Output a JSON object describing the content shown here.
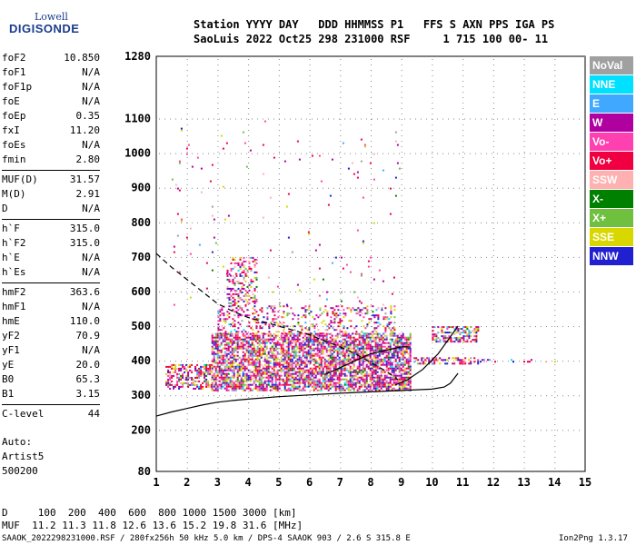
{
  "logo": {
    "line1": "Lowell",
    "line2": "DIGISONDE"
  },
  "header": {
    "line1": "Station YYYY DAY   DDD HHMMSS P1   FFS S AXN PPS IGA PS",
    "line2": "SaoLuis 2022 Oct25 298 231000 RSF     1 715 100 00- 11"
  },
  "params": [
    [
      {
        "k": "foF2",
        "v": "10.850"
      },
      {
        "k": "foF1",
        "v": "N/A"
      },
      {
        "k": "foF1p",
        "v": "N/A"
      },
      {
        "k": "foE",
        "v": "N/A"
      },
      {
        "k": "foEp",
        "v": "0.35"
      },
      {
        "k": "fxI",
        "v": "11.20"
      },
      {
        "k": "foEs",
        "v": "N/A"
      },
      {
        "k": "fmin",
        "v": "2.80"
      }
    ],
    [
      {
        "k": "MUF(D)",
        "v": "31.57"
      },
      {
        "k": "M(D)",
        "v": "2.91"
      },
      {
        "k": "D",
        "v": "N/A"
      }
    ],
    [
      {
        "k": "h`F",
        "v": "315.0"
      },
      {
        "k": "h`F2",
        "v": "315.0"
      },
      {
        "k": "h`E",
        "v": "N/A"
      },
      {
        "k": "h`Es",
        "v": "N/A"
      }
    ],
    [
      {
        "k": "hmF2",
        "v": "363.6"
      },
      {
        "k": "hmF1",
        "v": "N/A"
      },
      {
        "k": "hmE",
        "v": "110.0"
      },
      {
        "k": "yF2",
        "v": "70.9"
      },
      {
        "k": "yF1",
        "v": "N/A"
      },
      {
        "k": "yE",
        "v": "20.0"
      },
      {
        "k": "B0",
        "v": "65.3"
      },
      {
        "k": "B1",
        "v": "3.15"
      }
    ],
    [
      {
        "k": "C-level",
        "v": "44"
      }
    ]
  ],
  "auto": {
    "line1": "Auto:",
    "line2": "Artist5",
    "line3": "500200"
  },
  "bottom": {
    "d_line": "D     100  200  400  600  800 1000 1500 3000 [km]",
    "muf_line": "MUF  11.2 11.3 11.8 12.6 13.6 15.2 19.8 31.6 [MHz]",
    "footer_left": "SAAOK_2022298231000.RSF / 280fx256h 50 kHz 5.0 km / DPS-4 SAAOK 903 / 2.6 S 315.8 E",
    "footer_right": "Ion2Png 1.3.17"
  },
  "legend": [
    {
      "label": "NoVal",
      "color": "#a0a0a0"
    },
    {
      "label": "NNE",
      "color": "#00e0ff"
    },
    {
      "label": "E",
      "color": "#40a8ff"
    },
    {
      "label": "W",
      "color": "#b000a0"
    },
    {
      "label": "Vo-",
      "color": "#ff40b0"
    },
    {
      "label": "Vo+",
      "color": "#f00040"
    },
    {
      "label": "SSW",
      "color": "#ffb0b0"
    },
    {
      "label": "X-",
      "color": "#008000"
    },
    {
      "label": "X+",
      "color": "#70c040"
    },
    {
      "label": "SSE",
      "color": "#d8d800"
    },
    {
      "label": "NNW",
      "color": "#2020d0"
    }
  ],
  "chart_data": {
    "type": "scatter",
    "title": "",
    "xlabel": "",
    "ylabel": "",
    "xlim": [
      1,
      15
    ],
    "ylim": [
      80,
      1280
    ],
    "x_ticks": [
      1,
      2,
      3,
      4,
      5,
      6,
      7,
      8,
      9,
      10,
      11,
      12,
      13,
      14,
      15
    ],
    "y_ticks": [
      80,
      200,
      300,
      400,
      500,
      600,
      700,
      800,
      900,
      1000,
      1100,
      1280
    ],
    "grid": true,
    "legend_position": "right",
    "echo_clusters": [
      {
        "f_min": 1.3,
        "f_max": 2.8,
        "h_min": 320,
        "h_max": 390,
        "density": 0.55
      },
      {
        "f_min": 2.8,
        "f_max": 9.3,
        "h_min": 315,
        "h_max": 480,
        "density": 0.7
      },
      {
        "f_min": 3.0,
        "f_max": 8.8,
        "h_min": 480,
        "h_max": 560,
        "density": 0.25
      },
      {
        "f_min": 3.3,
        "f_max": 4.3,
        "h_min": 560,
        "h_max": 700,
        "density": 0.35
      },
      {
        "f_min": 9.4,
        "f_max": 11.5,
        "h_min": 390,
        "h_max": 410,
        "density": 0.5
      },
      {
        "f_min": 10.0,
        "f_max": 11.5,
        "h_min": 455,
        "h_max": 500,
        "density": 0.55
      },
      {
        "f_min": 11.5,
        "f_max": 14.0,
        "h_min": 395,
        "h_max": 405,
        "density": 0.2
      },
      {
        "f_min": 1.5,
        "f_max": 9.0,
        "h_min": 560,
        "h_max": 1100,
        "density": 0.01
      }
    ],
    "trace_true_height": [
      [
        1,
        240
      ],
      [
        1.5,
        252
      ],
      [
        2,
        262
      ],
      [
        2.5,
        272
      ],
      [
        3,
        280
      ],
      [
        3.5,
        285
      ],
      [
        4,
        289
      ],
      [
        5,
        296
      ],
      [
        6,
        301
      ],
      [
        7,
        306
      ],
      [
        8,
        310
      ],
      [
        9,
        314
      ],
      [
        10,
        318
      ],
      [
        10.4,
        324
      ],
      [
        10.6,
        335
      ],
      [
        10.85,
        363.6
      ]
    ],
    "trace_virtual_upper": [
      [
        8.8,
        330
      ],
      [
        9.2,
        345
      ],
      [
        9.7,
        375
      ],
      [
        10.2,
        420
      ],
      [
        10.85,
        500
      ]
    ],
    "trace_ordinary_dashed": [
      [
        1,
        710
      ],
      [
        1.5,
        670
      ],
      [
        2,
        635
      ],
      [
        2.5,
        600
      ],
      [
        3,
        565
      ],
      [
        3.5,
        543
      ],
      [
        4,
        525
      ],
      [
        5,
        500
      ],
      [
        6,
        475
      ],
      [
        7,
        440
      ],
      [
        7.5,
        420
      ],
      [
        8,
        395
      ],
      [
        8.5,
        370
      ],
      [
        8.9,
        345
      ]
    ],
    "trace_lower_branch": [
      [
        6.5,
        360
      ],
      [
        7,
        380
      ],
      [
        7.5,
        400
      ],
      [
        8,
        420
      ],
      [
        8.5,
        430
      ],
      [
        9,
        440
      ],
      [
        9.3,
        440
      ]
    ]
  }
}
